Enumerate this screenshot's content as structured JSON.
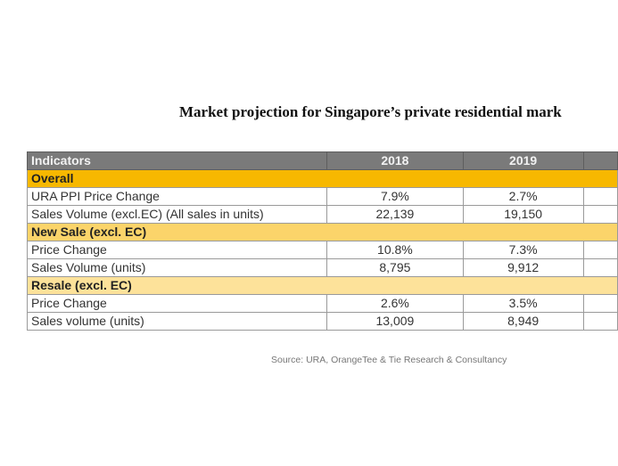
{
  "title": "Market projection for Singapore’s private residential mark",
  "table": {
    "headers": [
      "Indicators",
      "2018",
      "2019",
      ""
    ],
    "sections": [
      {
        "label": "Overall",
        "rows": [
          {
            "indicator": "URA PPI Price Change",
            "v2018": "7.9%",
            "v2019": "2.7%"
          },
          {
            "indicator": "Sales Volume (excl.EC) (All sales in units)",
            "v2018": "22,139",
            "v2019": "19,150"
          }
        ]
      },
      {
        "label": "New Sale (excl. EC)",
        "rows": [
          {
            "indicator": "Price Change",
            "v2018": "10.8%",
            "v2019": "7.3%"
          },
          {
            "indicator": "Sales Volume (units)",
            "v2018": "8,795",
            "v2019": "9,912"
          }
        ]
      },
      {
        "label": "Resale (excl. EC)",
        "rows": [
          {
            "indicator": "Price Change",
            "v2018": "2.6%",
            "v2019": "3.5%"
          },
          {
            "indicator": "Sales volume (units)",
            "v2018": "13,009",
            "v2019": "8,949"
          }
        ]
      }
    ]
  },
  "source": "Source: URA, OrangeTee & Tie Research & Consultancy",
  "colors": {
    "header": "#7a7a7a",
    "overall": "#f7b800",
    "new_sale": "#fbd46a",
    "resale": "#fde29a"
  }
}
